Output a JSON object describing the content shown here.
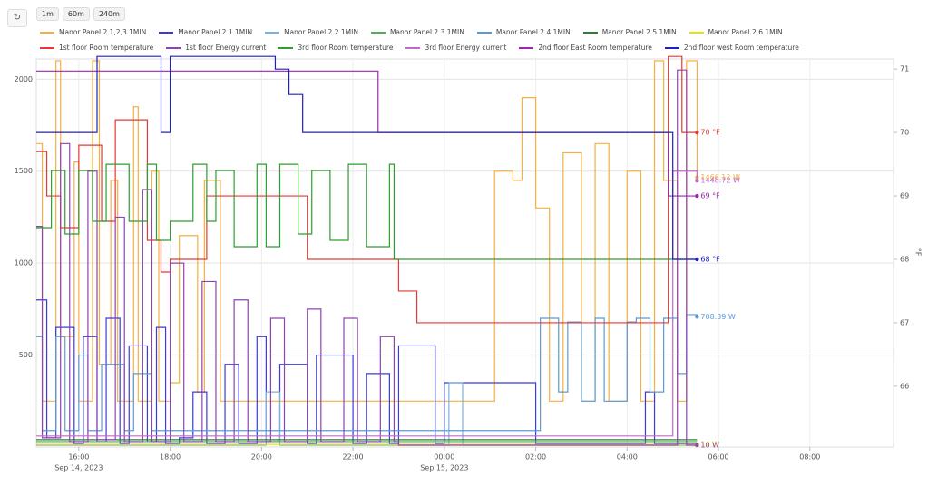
{
  "controls": [
    "1m",
    "60m",
    "240m"
  ],
  "chart_data": {
    "type": "line",
    "step": true,
    "grid": true,
    "y2label": "°F",
    "xlim": [
      15.07,
      33.83
    ],
    "ylim": [
      0,
      2110
    ],
    "y2lim": [
      65.04,
      71.16
    ],
    "xticks": [
      {
        "value": 16,
        "label": "16:00"
      },
      {
        "value": 18,
        "label": "18:00"
      },
      {
        "value": 20,
        "label": "20:00"
      },
      {
        "value": 22,
        "label": "22:00"
      },
      {
        "value": 24,
        "label": "00:00"
      },
      {
        "value": 26,
        "label": "02:00"
      },
      {
        "value": 28,
        "label": "04:00"
      },
      {
        "value": 30,
        "label": "06:00"
      },
      {
        "value": 32,
        "label": "08:00"
      }
    ],
    "date_labels": [
      {
        "value": 16,
        "label": "Sep 14, 2023"
      },
      {
        "value": 24,
        "label": "Sep 15, 2023"
      }
    ],
    "yticks": [
      500,
      1000,
      1500,
      2000
    ],
    "y2ticks": [
      66,
      67,
      68,
      69,
      70,
      71
    ],
    "series": [
      {
        "name": "Manor Panel 2 1,2,3 1MIN",
        "color": "#f5b041",
        "end_label": "1466.12 W",
        "x": [
          15.07,
          15.2,
          15.5,
          15.6,
          15.9,
          16.0,
          16.3,
          16.45,
          16.7,
          16.85,
          17.2,
          17.3,
          17.6,
          17.75,
          18.0,
          18.2,
          18.6,
          18.75,
          19.1,
          19.3,
          24.9,
          25.1,
          25.5,
          25.7,
          26.0,
          26.3,
          26.6,
          27.0,
          27.3,
          27.6,
          28.0,
          28.3,
          28.6,
          28.8,
          29.1,
          29.3,
          29.53
        ],
        "values": [
          1650,
          250,
          2100,
          600,
          1550,
          250,
          2100,
          450,
          1450,
          250,
          1850,
          250,
          1500,
          250,
          350,
          1150,
          300,
          1450,
          250,
          250,
          250,
          1500,
          1450,
          1900,
          1300,
          250,
          1600,
          250,
          1650,
          250,
          1500,
          250,
          2100,
          1450,
          250,
          2100,
          1466.12
        ]
      },
      {
        "name": "Manor Panel 2 1 1MIN",
        "color": "#3b3bd9",
        "x": [
          15.07,
          15.3,
          15.5,
          15.9,
          16.1,
          16.4,
          16.6,
          16.9,
          17.1,
          17.5,
          17.7,
          17.9,
          18.2,
          18.5,
          18.8,
          19.2,
          19.5,
          19.9,
          20.1,
          20.4,
          21.0,
          21.2,
          22.0,
          22.3,
          22.8,
          23.0,
          23.8,
          24.0,
          26.0,
          27.0,
          28.4,
          28.6,
          29.53
        ],
        "values": [
          800,
          50,
          650,
          20,
          600,
          30,
          700,
          20,
          550,
          30,
          650,
          20,
          50,
          300,
          20,
          450,
          20,
          600,
          30,
          450,
          20,
          500,
          20,
          400,
          20,
          550,
          20,
          350,
          20,
          20,
          300,
          20,
          20
        ]
      },
      {
        "name": "Manor Panel 2 2 1MIN",
        "color": "#7ab0e0",
        "x": [
          15.07,
          20.0,
          20.1,
          20.4,
          24.0,
          24.1,
          24.4,
          29.53
        ],
        "values": [
          10,
          10,
          300,
          10,
          10,
          350,
          10,
          10
        ]
      },
      {
        "name": "Manor Panel 2 3 1MIN",
        "color": "#4caf50",
        "x": [
          15.07,
          29.53
        ],
        "values": [
          30,
          30
        ]
      },
      {
        "name": "Manor Panel 2 4 1MIN",
        "color": "#5b9bd5",
        "end_label": "708.39 W",
        "x": [
          15.07,
          15.2,
          15.5,
          15.7,
          16.0,
          16.2,
          16.5,
          17.0,
          17.2,
          17.6,
          26.0,
          26.1,
          26.5,
          26.7,
          27.0,
          27.3,
          27.5,
          28.0,
          28.2,
          28.5,
          28.8,
          29.1,
          29.3,
          29.53
        ],
        "values": [
          600,
          90,
          600,
          90,
          500,
          90,
          450,
          90,
          400,
          90,
          90,
          700,
          300,
          680,
          250,
          700,
          250,
          680,
          700,
          300,
          700,
          400,
          720,
          708.39
        ]
      },
      {
        "name": "Manor Panel 2 5 1MIN",
        "color": "#2e7d32",
        "x": [
          15.07,
          29.53
        ],
        "values": [
          40,
          40
        ]
      },
      {
        "name": "Manor Panel 2 6 1MIN",
        "color": "#f0e000",
        "end_label": "14 W",
        "x": [
          15.07,
          29.53
        ],
        "values": [
          14,
          14
        ]
      },
      {
        "name": "1st floor Room temperature",
        "color": "#e53935",
        "axis": "y2",
        "end_label": "70 °F",
        "x": [
          15.07,
          15.3,
          15.6,
          16.0,
          16.5,
          16.8,
          17.5,
          17.8,
          18.0,
          18.4,
          18.8,
          21.0,
          22.5,
          23.0,
          23.4,
          28.8,
          28.9,
          29.2,
          29.53
        ],
        "values": [
          69.7,
          69,
          68.5,
          69.8,
          68.6,
          70.2,
          68.3,
          67.8,
          68,
          68,
          69,
          68,
          68,
          67.5,
          67,
          67,
          71.2,
          70,
          70
        ]
      },
      {
        "name": "1st floor Energy current",
        "color": "#8e44ad",
        "end_label": "10 W",
        "x": [
          15.07,
          15.2,
          15.6,
          15.8,
          16.2,
          16.4,
          16.8,
          17.0,
          17.4,
          17.6,
          18.0,
          18.3,
          18.7,
          19.0,
          19.4,
          19.7,
          20.2,
          20.5,
          21.0,
          21.3,
          21.8,
          22.1,
          22.6,
          22.9,
          23.0,
          28.9,
          29.1,
          29.3,
          29.53
        ],
        "values": [
          1200,
          50,
          1650,
          30,
          1500,
          40,
          1250,
          30,
          1400,
          30,
          1000,
          30,
          900,
          30,
          800,
          30,
          700,
          30,
          750,
          30,
          700,
          30,
          600,
          30,
          10,
          10,
          2050,
          10,
          10
        ]
      },
      {
        "name": "3rd floor Room temperature",
        "color": "#2e9e2e",
        "axis": "y2",
        "x": [
          15.07,
          15.4,
          15.7,
          16.0,
          16.3,
          16.6,
          17.1,
          17.5,
          17.7,
          18.0,
          18.5,
          18.8,
          19.0,
          19.4,
          19.9,
          20.1,
          20.4,
          20.8,
          21.1,
          21.5,
          21.9,
          22.3,
          22.8,
          22.9,
          29.53
        ],
        "values": [
          68.5,
          69.4,
          68.4,
          69.4,
          68.6,
          69.5,
          68.6,
          69.5,
          68.3,
          68.6,
          69.5,
          68.6,
          69.4,
          68.2,
          69.5,
          68.2,
          69.5,
          68.4,
          69.4,
          68.3,
          69.5,
          68.2,
          69.5,
          68,
          68
        ]
      },
      {
        "name": "3rd floor Energy current",
        "color": "#c06ac8",
        "end_label": "1448.72 W",
        "x": [
          15.07,
          28.9,
          29.0,
          29.53
        ],
        "values": [
          60,
          60,
          1500,
          1448.72
        ]
      },
      {
        "name": "2nd floor East Room temperature",
        "color": "#9c27b0",
        "axis": "y2",
        "end_label": "69 °F",
        "x": [
          15.07,
          22.4,
          22.55,
          28.9,
          29.53
        ],
        "values": [
          70.97,
          70.97,
          70,
          69,
          69
        ]
      },
      {
        "name": "2nd floor west Room temperature",
        "color": "#2020c0",
        "axis": "y2",
        "end_label": "68 °F",
        "x": [
          15.07,
          16.2,
          16.4,
          17.8,
          18.0,
          20.3,
          20.6,
          20.9,
          28.9,
          29.0,
          29.53
        ],
        "values": [
          70,
          70,
          71.2,
          70,
          71.2,
          71,
          70.6,
          70,
          70,
          68,
          68
        ]
      }
    ]
  }
}
